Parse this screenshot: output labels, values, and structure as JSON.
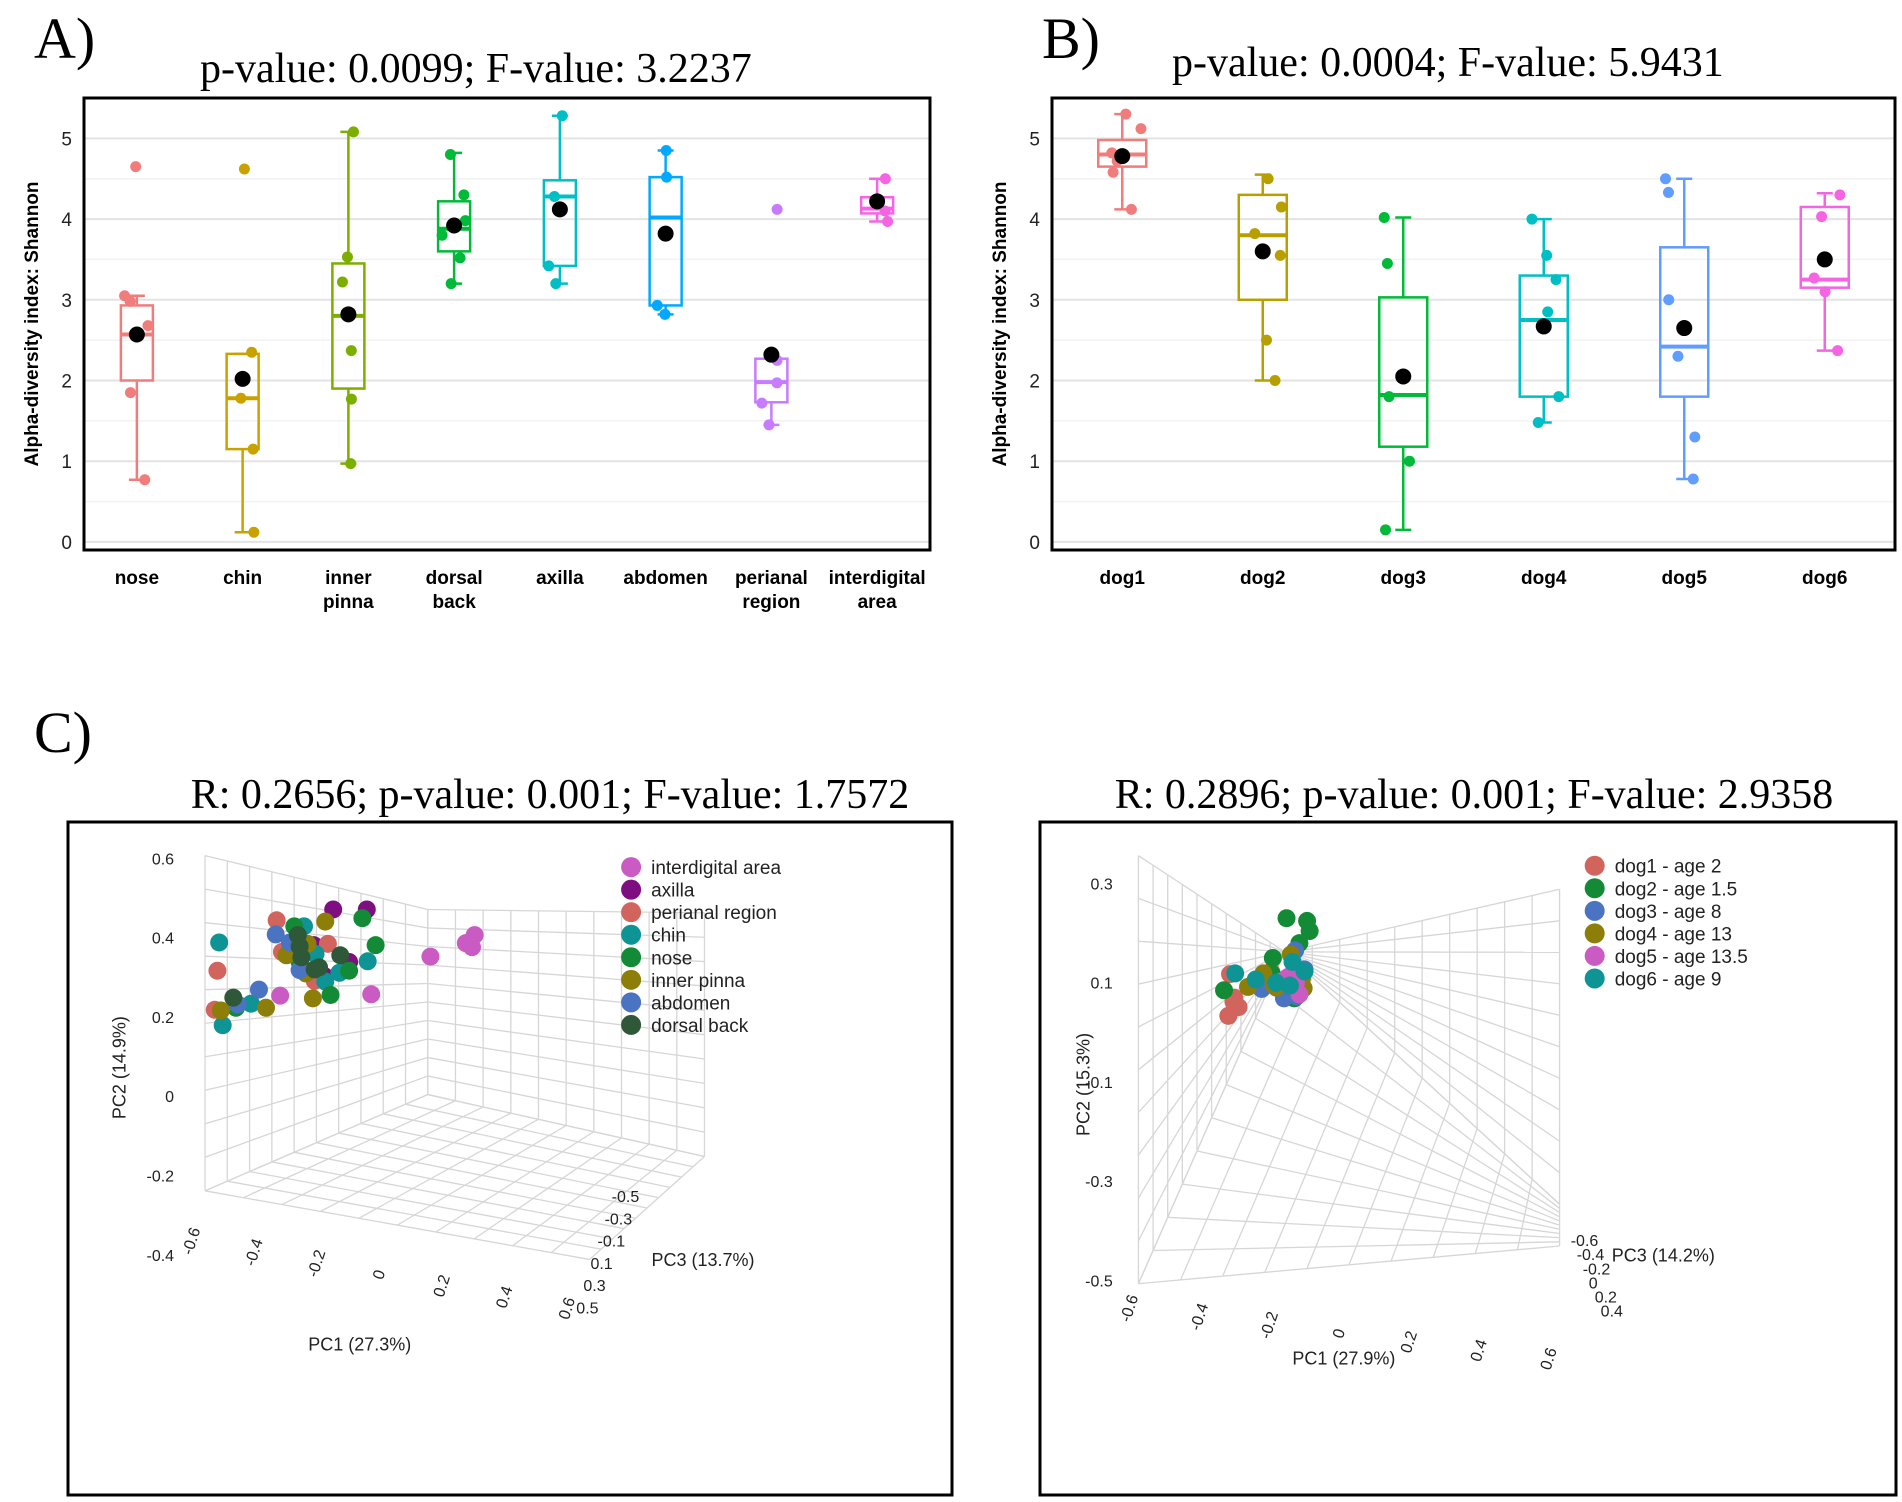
{
  "figure": {
    "panels": {
      "A": {
        "label": "A)",
        "title": "p-value: 0.0099; F-value: 3.2237"
      },
      "B": {
        "label": "B)",
        "title": "p-value: 0.0004; F-value: 5.9431"
      },
      "C": {
        "label": "C)"
      }
    }
  },
  "chart_data": [
    {
      "id": "A",
      "type": "box",
      "title": "p-value: 0.0099; F-value: 3.2237",
      "ylabel": "Alpha-diversity index: Shannon",
      "xlabel": "",
      "ylim": [
        -0.1,
        5.5
      ],
      "yticks": [
        "0",
        "1",
        "2",
        "3",
        "4",
        "5"
      ],
      "grid": true,
      "categories": [
        {
          "label": [
            "nose"
          ],
          "color": "#F07C7C",
          "q1": 2.0,
          "median": 2.57,
          "q3": 2.93,
          "whisker_low": 0.77,
          "whisker_high": 3.05,
          "mean": 2.57,
          "points": [
            4.65,
            3.05,
            2.98,
            2.68,
            2.55,
            1.85,
            0.77
          ]
        },
        {
          "label": [
            "chin"
          ],
          "color": "#C9A200",
          "q1": 1.15,
          "median": 1.78,
          "q3": 2.33,
          "whisker_low": 0.12,
          "whisker_high": 2.33,
          "mean": 2.02,
          "points": [
            4.62,
            2.35,
            1.78,
            1.15,
            0.12
          ]
        },
        {
          "label": [
            "inner",
            "pinna"
          ],
          "color": "#7CAE00",
          "q1": 1.9,
          "median": 2.8,
          "q3": 3.45,
          "whisker_low": 0.97,
          "whisker_high": 5.08,
          "mean": 2.82,
          "points": [
            5.08,
            3.53,
            3.22,
            2.37,
            1.77,
            0.97
          ]
        },
        {
          "label": [
            "dorsal",
            "back"
          ],
          "color": "#00BA38",
          "q1": 3.6,
          "median": 3.88,
          "q3": 4.22,
          "whisker_low": 3.2,
          "whisker_high": 4.82,
          "mean": 3.92,
          "points": [
            4.8,
            4.3,
            3.98,
            3.8,
            3.52,
            3.2
          ]
        },
        {
          "label": [
            "axilla"
          ],
          "color": "#00BFC4",
          "q1": 3.42,
          "median": 4.28,
          "q3": 4.48,
          "whisker_low": 3.2,
          "whisker_high": 5.28,
          "mean": 4.12,
          "points": [
            5.28,
            4.28,
            3.42,
            3.2
          ]
        },
        {
          "label": [
            "abdomen"
          ],
          "color": "#00A9FF",
          "q1": 2.93,
          "median": 4.02,
          "q3": 4.52,
          "whisker_low": 2.82,
          "whisker_high": 4.85,
          "mean": 3.82,
          "points": [
            4.85,
            4.52,
            2.93,
            2.82
          ]
        },
        {
          "label": [
            "perianal",
            "region"
          ],
          "color": "#C77CFF",
          "q1": 1.73,
          "median": 1.98,
          "q3": 2.27,
          "whisker_low": 1.45,
          "whisker_high": 2.27,
          "mean": 2.32,
          "points": [
            4.12,
            2.25,
            1.97,
            1.72,
            1.45
          ]
        },
        {
          "label": [
            "interdigital",
            "area"
          ],
          "color": "#F564E3",
          "q1": 4.07,
          "median": 4.13,
          "q3": 4.27,
          "whisker_low": 3.97,
          "whisker_high": 4.5,
          "mean": 4.22,
          "points": [
            4.5,
            4.2,
            4.1,
            3.97
          ]
        }
      ]
    },
    {
      "id": "B",
      "type": "box",
      "title": "p-value: 0.0004; F-value: 5.9431",
      "ylabel": "Alpha-diversity index: Shannon",
      "xlabel": "",
      "ylim": [
        -0.1,
        5.5
      ],
      "yticks": [
        "0",
        "1",
        "2",
        "3",
        "4",
        "5"
      ],
      "grid": true,
      "categories": [
        {
          "label": [
            "dog1"
          ],
          "color": "#F07C7C",
          "q1": 4.65,
          "median": 4.8,
          "q3": 4.98,
          "whisker_low": 4.12,
          "whisker_high": 5.3,
          "mean": 4.78,
          "points": [
            5.3,
            5.12,
            4.82,
            4.72,
            4.58,
            4.12
          ]
        },
        {
          "label": [
            "dog2"
          ],
          "color": "#B79F00",
          "q1": 3.0,
          "median": 3.8,
          "q3": 4.3,
          "whisker_low": 2.0,
          "whisker_high": 4.55,
          "mean": 3.6,
          "points": [
            4.5,
            4.15,
            3.82,
            3.55,
            2.5,
            2.0
          ]
        },
        {
          "label": [
            "dog3"
          ],
          "color": "#00BA38",
          "q1": 1.18,
          "median": 1.82,
          "q3": 3.03,
          "whisker_low": 0.15,
          "whisker_high": 4.02,
          "mean": 2.05,
          "points": [
            4.02,
            3.45,
            1.8,
            1.0,
            0.15
          ]
        },
        {
          "label": [
            "dog4"
          ],
          "color": "#00BFC4",
          "q1": 1.8,
          "median": 2.75,
          "q3": 3.3,
          "whisker_low": 1.48,
          "whisker_high": 4.0,
          "mean": 2.67,
          "points": [
            4.0,
            3.55,
            3.25,
            2.85,
            1.8,
            1.48
          ]
        },
        {
          "label": [
            "dog5"
          ],
          "color": "#619CFF",
          "q1": 1.8,
          "median": 2.42,
          "q3": 3.65,
          "whisker_low": 0.78,
          "whisker_high": 4.5,
          "mean": 2.65,
          "points": [
            4.5,
            4.33,
            3.0,
            2.3,
            1.3,
            0.78
          ]
        },
        {
          "label": [
            "dog6"
          ],
          "color": "#F564E3",
          "q1": 3.15,
          "median": 3.25,
          "q3": 4.15,
          "whisker_low": 2.37,
          "whisker_high": 4.32,
          "mean": 3.5,
          "points": [
            4.3,
            4.03,
            3.27,
            3.1,
            2.37
          ]
        }
      ]
    },
    {
      "id": "C1",
      "type": "scatter",
      "title": "R: 0.2656; p-value: 0.001; F-value: 1.7572",
      "xlabel": "PC1 (27.3%)",
      "ylabel": "PC2 (14.9%)",
      "zlabel": "PC3 (13.7%)",
      "xticks": [
        "-0.6",
        "-0.4",
        "-0.2",
        "0",
        "0.2",
        "0.4",
        "0.6"
      ],
      "yticks": [
        "0.6",
        "0.4",
        "0.2",
        "0",
        "-0.2",
        "-0.4"
      ],
      "zticks": [
        "-0.5",
        "-0.3",
        "-0.1",
        "0.1",
        "0.3",
        "0.5"
      ],
      "legend": "top-right",
      "series": [
        {
          "name": "interdigital area",
          "color": "#C95BC2",
          "pts": [
            [
              0.45,
              0.18
            ],
            [
              0.46,
              0.168
            ],
            [
              0.24,
              0.258
            ],
            [
              0.343,
              0.256
            ],
            [
              0.41,
              0.2
            ],
            [
              0.457,
              0.186
            ]
          ]
        },
        {
          "name": "axilla",
          "color": "#7E0F80",
          "pts": [
            [
              0.286,
              0.232
            ],
            [
              0.29,
              0.229
            ],
            [
              0.278,
              0.183
            ],
            [
              0.318,
              0.208
            ],
            [
              0.3,
              0.13
            ],
            [
              0.338,
              0.13
            ]
          ]
        },
        {
          "name": "perianal region",
          "color": "#D1655E",
          "pts": [
            [
              0.166,
              0.279
            ],
            [
              0.169,
              0.221
            ],
            [
              0.279,
              0.236
            ],
            [
              0.294,
              0.181
            ],
            [
              0.242,
              0.193
            ],
            [
              0.236,
              0.146
            ]
          ]
        },
        {
          "name": "chin",
          "color": "#0E9494",
          "pts": [
            [
              0.175,
              0.302
            ],
            [
              0.207,
              0.27
            ],
            [
              0.291,
              0.237
            ],
            [
              0.307,
              0.224
            ],
            [
              0.28,
              0.196
            ],
            [
              0.339,
              0.207
            ],
            [
              0.267,
              0.155
            ],
            [
              0.171,
              0.179
            ]
          ]
        },
        {
          "name": "nose",
          "color": "#138B36",
          "pts": [
            [
              0.19,
              0.276
            ],
            [
              0.297,
              0.257
            ],
            [
              0.318,
              0.221
            ],
            [
              0.262,
              0.208
            ],
            [
              0.333,
              0.143
            ],
            [
              0.256,
              0.155
            ],
            [
              0.348,
              0.183
            ]
          ]
        },
        {
          "name": "inner pinna",
          "color": "#8C7E08",
          "pts": [
            [
              0.173,
              0.28
            ],
            [
              0.224,
              0.276
            ],
            [
              0.277,
              0.262
            ],
            [
              0.269,
              0.225
            ],
            [
              0.247,
              0.198
            ],
            [
              0.271,
              0.181
            ],
            [
              0.291,
              0.148
            ]
          ]
        },
        {
          "name": "abdomen",
          "color": "#4A73C1",
          "pts": [
            [
              0.192,
              0.271
            ],
            [
              0.216,
              0.249
            ],
            [
              0.262,
              0.22
            ],
            [
              0.235,
              0.167
            ],
            [
              0.251,
              0.179
            ]
          ]
        },
        {
          "name": "dorsal back",
          "color": "#2E5838",
          "pts": [
            [
              0.187,
              0.261
            ],
            [
              0.279,
              0.219
            ],
            [
              0.284,
              0.216
            ],
            [
              0.264,
              0.201
            ],
            [
              0.308,
              0.198
            ],
            [
              0.262,
              0.185
            ],
            [
              0.26,
              0.168
            ]
          ]
        }
      ]
    },
    {
      "id": "C2",
      "type": "scatter",
      "title": "R: 0.2896; p-value: 0.001; F-value: 2.9358",
      "xlabel": "PC1 (27.9%)",
      "ylabel": "PC2 (15.3%)",
      "zlabel": "PC3 (14.2%)",
      "xticks": [
        "-0.6",
        "-0.4",
        "-0.2",
        "0",
        "0.2",
        "0.4",
        "0.6"
      ],
      "yticks": [
        "0.3",
        "0.1",
        "-0.1",
        "-0.3",
        "-0.5"
      ],
      "zticks": [
        "-0.6",
        "-0.4",
        "-0.2",
        "0",
        "0.2",
        "0.4"
      ],
      "legend": "top-right",
      "series": [
        {
          "name": "dog1 - age 2",
          "color": "#D1655E",
          "pts": [
            [
              0.22,
              0.288
            ],
            [
              0.232,
              0.275
            ],
            [
              0.226,
              0.267
            ],
            [
              0.227,
              0.261
            ],
            [
              0.229,
              0.275
            ],
            [
              0.222,
              0.226
            ],
            [
              0.27,
              0.222
            ]
          ]
        },
        {
          "name": "dog2 - age 1.5",
          "color": "#138B36",
          "pts": [
            [
              0.215,
              0.25
            ],
            [
              0.271,
              0.226
            ],
            [
              0.272,
              0.202
            ],
            [
              0.288,
              0.143
            ],
            [
              0.303,
              0.18
            ],
            [
              0.312,
              0.147
            ],
            [
              0.315,
              0.162
            ],
            [
              0.297,
              0.262
            ]
          ]
        },
        {
          "name": "dog3 - age 8",
          "color": "#4A73C1",
          "pts": [
            [
              0.3,
              0.249
            ],
            [
              0.285,
              0.262
            ],
            [
              0.259,
              0.248
            ],
            [
              0.3,
              0.259
            ],
            [
              0.298,
              0.191
            ],
            [
              0.309,
              0.219
            ],
            [
              0.278,
              0.247
            ]
          ]
        },
        {
          "name": "dog4 - age 13",
          "color": "#8C7E08",
          "pts": [
            [
              0.261,
              0.225
            ],
            [
              0.243,
              0.245
            ],
            [
              0.273,
              0.242
            ],
            [
              0.276,
              0.246
            ],
            [
              0.293,
              0.197
            ],
            [
              0.308,
              0.247
            ],
            [
              0.306,
              0.232
            ]
          ]
        },
        {
          "name": "dog5 - age 13.5",
          "color": "#C95BC2",
          "pts": [
            [
              0.29,
              0.23
            ],
            [
              0.299,
              0.239
            ],
            [
              0.282,
              0.237
            ],
            [
              0.303,
              0.256
            ],
            [
              0.296,
              0.23
            ],
            [
              0.298,
              0.228
            ]
          ]
        },
        {
          "name": "dog6 - age 9",
          "color": "#0E9494",
          "pts": [
            [
              0.228,
              0.225
            ],
            [
              0.252,
              0.234
            ],
            [
              0.276,
              0.239
            ],
            [
              0.292,
              0.243
            ],
            [
              0.295,
              0.208
            ],
            [
              0.309,
              0.222
            ]
          ]
        }
      ]
    }
  ]
}
